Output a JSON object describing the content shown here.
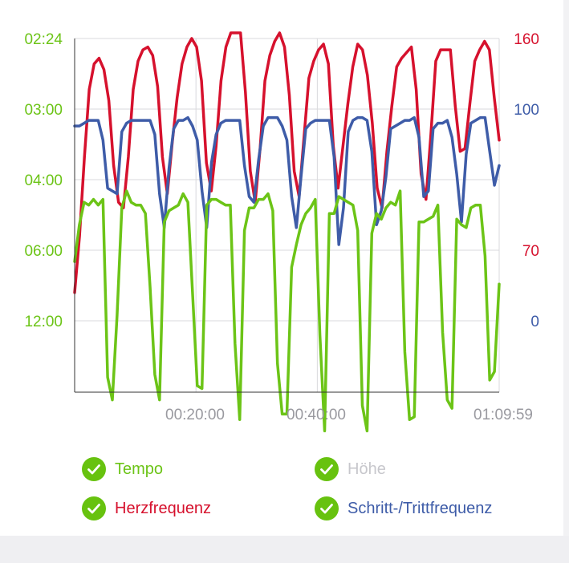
{
  "colors": {
    "tempo": "#6cc417",
    "heart": "#d6112d",
    "cadence": "#3e5ca8",
    "altitude": "#c7c7cc",
    "grid": "#d9d9dc",
    "axis": "#333333",
    "xtick": "#9a9aa0",
    "check": "#67c20f"
  },
  "legend": {
    "tempo": {
      "label": "Tempo",
      "icon": "check-circle-icon",
      "enabled": true
    },
    "altitude": {
      "label": "Höhe",
      "icon": "check-circle-icon",
      "enabled": false
    },
    "heart": {
      "label": "Herzfrequenz",
      "icon": "check-circle-icon",
      "enabled": true
    },
    "cadence": {
      "label": "Schritt-/Trittfrequenz",
      "icon": "check-circle-icon",
      "enabled": true
    }
  },
  "chart_data": {
    "type": "line",
    "x_range_seconds": [
      0,
      4199
    ],
    "x_ticks": [
      {
        "seconds": 1200,
        "label": "00:20:00"
      },
      {
        "seconds": 2400,
        "label": "00:40:00"
      },
      {
        "seconds": 4199,
        "label": "01:09:59"
      }
    ],
    "axes": {
      "left_tempo": {
        "ticks": [
          "02:24",
          "03:00",
          "04:00",
          "06:00",
          "12:00"
        ],
        "color": "tempo"
      },
      "right_heart": {
        "ticks": [
          "160",
          "70"
        ],
        "color": "heart"
      },
      "right_cadence": {
        "ticks": [
          "100",
          "0"
        ],
        "color": "cadence"
      }
    },
    "grid": true,
    "series": [
      {
        "name": "Herzfrequenz",
        "color_key": "heart",
        "values": [
          0.1,
          0.3,
          0.58,
          0.82,
          0.91,
          0.93,
          0.89,
          0.78,
          0.55,
          0.42,
          0.4,
          0.58,
          0.82,
          0.92,
          0.96,
          0.97,
          0.94,
          0.83,
          0.58,
          0.45,
          0.63,
          0.79,
          0.91,
          0.97,
          1.0,
          0.97,
          0.85,
          0.56,
          0.46,
          0.62,
          0.85,
          0.97,
          1.02,
          1.02,
          1.02,
          0.81,
          0.53,
          0.42,
          0.61,
          0.85,
          0.94,
          0.99,
          1.02,
          0.97,
          0.8,
          0.53,
          0.44,
          0.65,
          0.86,
          0.92,
          0.96,
          0.98,
          0.91,
          0.62,
          0.47,
          0.62,
          0.77,
          0.9,
          0.98,
          0.96,
          0.87,
          0.7,
          0.47,
          0.4,
          0.6,
          0.76,
          0.9,
          0.93,
          0.95,
          0.97,
          0.82,
          0.52,
          0.43,
          0.66,
          0.92,
          0.96,
          0.96,
          0.96,
          0.76,
          0.6,
          0.61,
          0.77,
          0.92,
          0.96,
          0.99,
          0.96,
          0.79,
          0.64
        ]
      },
      {
        "name": "Schritt-/Trittfrequenz",
        "color_key": "cadence",
        "values": [
          0.69,
          0.69,
          0.7,
          0.71,
          0.71,
          0.71,
          0.64,
          0.47,
          0.46,
          0.45,
          0.67,
          0.7,
          0.71,
          0.71,
          0.71,
          0.71,
          0.71,
          0.66,
          0.45,
          0.33,
          0.54,
          0.68,
          0.71,
          0.71,
          0.72,
          0.69,
          0.64,
          0.46,
          0.33,
          0.56,
          0.66,
          0.7,
          0.71,
          0.71,
          0.71,
          0.71,
          0.55,
          0.44,
          0.42,
          0.57,
          0.69,
          0.72,
          0.72,
          0.72,
          0.69,
          0.64,
          0.44,
          0.33,
          0.51,
          0.68,
          0.7,
          0.71,
          0.71,
          0.71,
          0.71,
          0.58,
          0.27,
          0.4,
          0.67,
          0.71,
          0.72,
          0.72,
          0.71,
          0.6,
          0.34,
          0.39,
          0.51,
          0.68,
          0.69,
          0.7,
          0.71,
          0.71,
          0.72,
          0.65,
          0.44,
          0.46,
          0.68,
          0.7,
          0.7,
          0.71,
          0.65,
          0.52,
          0.35,
          0.59,
          0.7,
          0.71,
          0.72,
          0.72,
          0.6,
          0.48,
          0.55
        ]
      },
      {
        "name": "Tempo",
        "color_key": "tempo",
        "values": [
          0.21,
          0.34,
          0.42,
          0.41,
          0.43,
          0.41,
          0.43,
          -0.2,
          -0.28,
          0.02,
          0.4,
          0.46,
          0.42,
          0.41,
          0.41,
          0.38,
          0.12,
          -0.19,
          -0.28,
          0.35,
          0.39,
          0.4,
          0.41,
          0.45,
          0.42,
          0.1,
          -0.23,
          -0.24,
          0.41,
          0.43,
          0.43,
          0.42,
          0.41,
          0.41,
          -0.08,
          -0.35,
          0.32,
          0.4,
          0.4,
          0.43,
          0.43,
          0.45,
          0.39,
          -0.15,
          -0.33,
          -0.33,
          0.19,
          0.27,
          0.34,
          0.38,
          0.4,
          0.43,
          -0.05,
          -0.39,
          0.38,
          0.38,
          0.44,
          0.43,
          0.42,
          0.41,
          0.32,
          -0.3,
          -0.39,
          0.31,
          0.38,
          0.36,
          0.4,
          0.42,
          0.41,
          0.46,
          -0.11,
          -0.35,
          -0.34,
          0.35,
          0.35,
          0.36,
          0.37,
          0.41,
          -0.04,
          -0.28,
          -0.31,
          0.36,
          0.34,
          0.33,
          0.4,
          0.41,
          0.41,
          0.23,
          -0.21,
          -0.18,
          0.13
        ]
      }
    ]
  }
}
